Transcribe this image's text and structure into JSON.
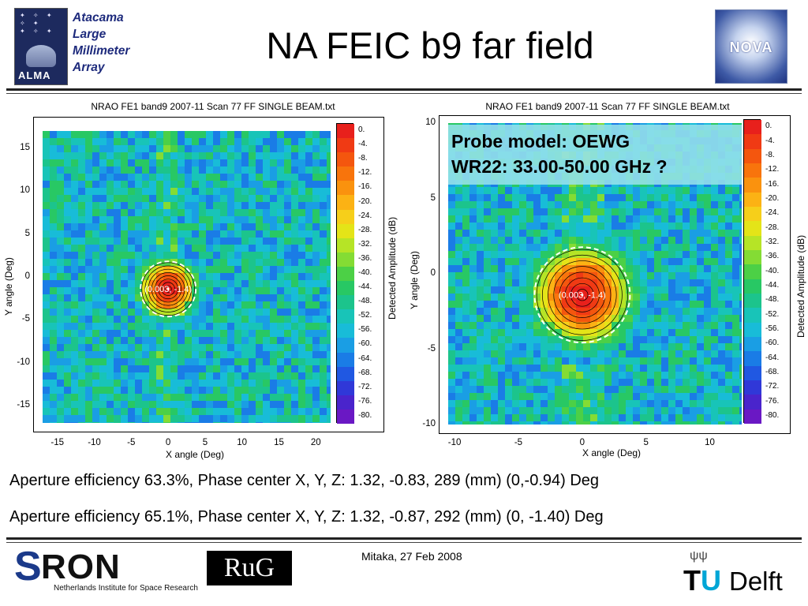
{
  "header": {
    "title": "NA FEIC b9 far field",
    "alma_words": [
      "Atacama",
      "Large",
      "Millimeter",
      "Array"
    ],
    "alma_logo_text": "ALMA",
    "nova_logo_text": "NOVA"
  },
  "colorbar": {
    "levels": [
      "0.",
      "-4.",
      "-8.",
      "-12.",
      "-16.",
      "-20.",
      "-24.",
      "-28.",
      "-32.",
      "-36.",
      "-40.",
      "-44.",
      "-48.",
      "-52.",
      "-56.",
      "-60.",
      "-64.",
      "-68.",
      "-72.",
      "-76.",
      "-80."
    ],
    "colors": [
      "#e8201c",
      "#f03a14",
      "#f4560e",
      "#f8740c",
      "#fa920e",
      "#fcb214",
      "#f6cf1a",
      "#e4e418",
      "#b6e426",
      "#84dc34",
      "#4cd046",
      "#28c864",
      "#1cc48c",
      "#18c4b8",
      "#18bcd8",
      "#1a9ee4",
      "#1a7ce6",
      "#2058e2",
      "#3038d8",
      "#4a24cc",
      "#6a18c4"
    ],
    "label": "Detected Amplitude (dB)"
  },
  "chart_data": [
    {
      "type": "heatmap",
      "title": "NRAO FE1 band9 2007-11 Scan 77 FF SINGLE BEAM.txt",
      "xlabel": "X angle (Deg)",
      "ylabel": "Y angle (Deg)",
      "colorbar_label": "Detected Amplitude (dB)",
      "xlim": [
        -17,
        22
      ],
      "ylim": [
        -17,
        17
      ],
      "xticks": [
        -15,
        -10,
        -5,
        0,
        5,
        10,
        15,
        20
      ],
      "yticks": [
        15,
        10,
        5,
        0,
        -5,
        -10,
        -15
      ],
      "zlim": [
        -80,
        0
      ],
      "peak": {
        "x": 0.003,
        "y": -1.4,
        "label": "(0.003, -1.4)"
      },
      "beam_radius_deg": 3.4,
      "note_lines": []
    },
    {
      "type": "heatmap",
      "title": "NRAO FE1 band9 2007-11 Scan 77 FF SINGLE BEAM.txt",
      "xlabel": "X angle (Deg)",
      "ylabel": "Y angle (Deg)",
      "colorbar_label": "Detected Amplitude (dB)",
      "xlim": [
        -10.5,
        12.5
      ],
      "ylim": [
        -10,
        10
      ],
      "xticks": [
        -10,
        -5,
        0,
        5,
        10
      ],
      "yticks": [
        10,
        5,
        0,
        -5,
        -10
      ],
      "zlim": [
        -80,
        0
      ],
      "peak": {
        "x": 0.003,
        "y": -1.4,
        "label": "(0.003, -1.4)"
      },
      "beam_radius_deg": 3.4,
      "note_lines": [
        "Probe model: OEWG",
        "WR22: 33.00-50.00 GHz ?"
      ]
    }
  ],
  "results": {
    "line1": "Aperture efficiency 63.3%, Phase center X, Y, Z: 1.32, -0.83, 289 (mm) (0,-0.94) Deg",
    "line2": "Aperture efficiency 65.1%, Phase center X, Y, Z: 1.32, -0.87, 292 (mm) (0, -1.40) Deg"
  },
  "footer": {
    "date": "Mitaka, 27 Feb 2008",
    "sron_s": "S",
    "sron_ron": "RON",
    "sron_sub": "Netherlands Institute for Space Research",
    "rug": "RuG",
    "tu": "TU",
    "delft": "Delft"
  }
}
